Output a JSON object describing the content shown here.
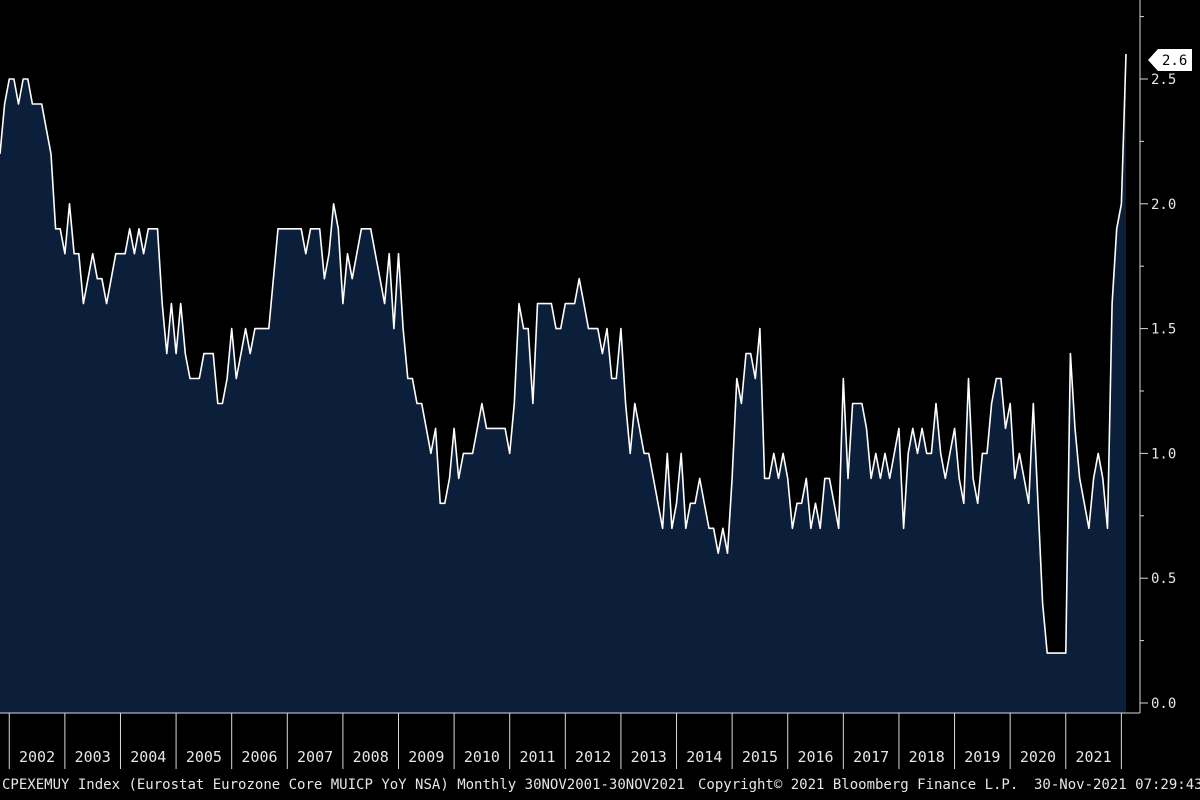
{
  "chart_data": {
    "type": "area",
    "ticker": "CPEXEMUY Index",
    "description": "(Eurostat Eurozone Core MUICP YoY NSA)",
    "frequency": "Monthly",
    "date_range": "30NOV2001-30NOV2021",
    "copyright": "Copyright© 2021 Bloomberg Finance L.P.",
    "timestamp": "30-Nov-2021 07:29:43",
    "last_value_label": "2.6",
    "ylim": [
      0,
      2.85
    ],
    "yticks": [
      "0.0",
      "0.5",
      "1.0",
      "1.5",
      "2.0",
      "2.5"
    ],
    "xtick_labels": [
      "2002",
      "2003",
      "2004",
      "2005",
      "2006",
      "2007",
      "2008",
      "2009",
      "2010",
      "2011",
      "2012",
      "2013",
      "2014",
      "2015",
      "2016",
      "2017",
      "2018",
      "2019",
      "2020",
      "2021"
    ],
    "colors": {
      "background": "#000000",
      "area_fill": "#0b1f3a",
      "line": "#ffffff",
      "axis": "#d9d9d9",
      "text": "#e6e6e6"
    },
    "series": [
      {
        "start": "2001-11",
        "values": [
          2.2,
          2.4,
          2.5,
          2.5,
          2.4,
          2.5,
          2.5,
          2.4,
          2.4,
          2.4,
          2.3,
          2.2,
          1.9,
          1.9,
          1.8,
          2.0,
          1.8,
          1.8,
          1.6,
          1.7,
          1.8,
          1.7,
          1.7,
          1.6,
          1.7,
          1.8,
          1.8,
          1.8,
          1.9,
          1.8,
          1.9,
          1.8,
          1.9,
          1.9,
          1.9,
          1.6,
          1.4,
          1.6,
          1.4,
          1.6,
          1.4,
          1.3,
          1.3,
          1.3,
          1.4,
          1.4,
          1.4,
          1.2,
          1.2,
          1.3,
          1.5,
          1.3,
          1.4,
          1.5,
          1.4,
          1.5,
          1.5,
          1.5,
          1.5,
          1.7,
          1.9,
          1.9,
          1.9,
          1.9,
          1.9,
          1.9,
          1.8,
          1.9,
          1.9,
          1.9,
          1.7,
          1.8,
          2.0,
          1.9,
          1.6,
          1.8,
          1.7,
          1.8,
          1.9,
          1.9,
          1.9,
          1.8,
          1.7,
          1.6,
          1.8,
          1.5,
          1.8,
          1.5,
          1.3,
          1.3,
          1.2,
          1.2,
          1.1,
          1.0,
          1.1,
          0.8,
          0.8,
          0.9,
          1.1,
          0.9,
          1.0,
          1.0,
          1.0,
          1.1,
          1.2,
          1.1,
          1.1,
          1.1,
          1.1,
          1.1,
          1.0,
          1.2,
          1.6,
          1.5,
          1.5,
          1.2,
          1.6,
          1.6,
          1.6,
          1.6,
          1.5,
          1.5,
          1.6,
          1.6,
          1.6,
          1.7,
          1.6,
          1.5,
          1.5,
          1.5,
          1.4,
          1.5,
          1.3,
          1.3,
          1.5,
          1.2,
          1.0,
          1.2,
          1.1,
          1.0,
          1.0,
          0.9,
          0.8,
          0.7,
          1.0,
          0.7,
          0.8,
          1.0,
          0.7,
          0.8,
          0.8,
          0.9,
          0.8,
          0.7,
          0.7,
          0.6,
          0.7,
          0.6,
          0.9,
          1.3,
          1.2,
          1.4,
          1.4,
          1.3,
          1.5,
          0.9,
          0.9,
          1.0,
          0.9,
          1.0,
          0.9,
          0.7,
          0.8,
          0.8,
          0.9,
          0.7,
          0.8,
          0.7,
          0.9,
          0.9,
          0.8,
          0.7,
          1.3,
          0.9,
          1.2,
          1.2,
          1.2,
          1.1,
          0.9,
          1.0,
          0.9,
          1.0,
          0.9,
          1.0,
          1.1,
          0.7,
          1.0,
          1.1,
          1.0,
          1.1,
          1.0,
          1.0,
          1.2,
          1.0,
          0.9,
          1.0,
          1.1,
          0.9,
          0.8,
          1.3,
          0.9,
          0.8,
          1.0,
          1.0,
          1.2,
          1.3,
          1.3,
          1.1,
          1.2,
          0.9,
          1.0,
          0.9,
          0.8,
          1.2,
          0.8,
          0.4,
          0.2,
          0.2,
          0.2,
          0.2,
          0.2,
          1.4,
          1.1,
          0.9,
          0.8,
          0.7,
          0.9,
          1.0,
          0.9,
          0.7,
          1.6,
          1.9,
          2.0,
          2.6
        ]
      }
    ]
  }
}
